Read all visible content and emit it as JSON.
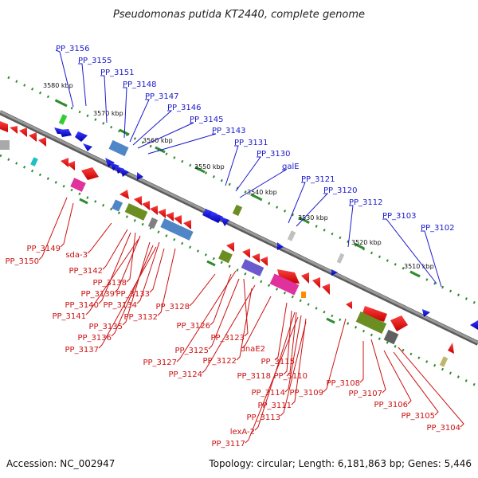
{
  "title": "Pseudomonas putida KT2440, complete genome",
  "footer": {
    "accession": "Accession: NC_002947",
    "topology": "Topology: circular; Length: 6,181,863 bp; Genes: 5,446"
  },
  "kbp_ticks": [
    "3580 kbp",
    "3570 kbp",
    "3560 kbp",
    "3550 kbp",
    "3540 kbp",
    "3530 kbp",
    "3520 kbp",
    "3510 kbp"
  ],
  "upper_labels": [
    "PP_3156",
    "PP_3155",
    "PP_3151",
    "PP_3148",
    "PP_3147",
    "PP_3146",
    "PP_3145",
    "PP_3143",
    "PP_3131",
    "PP_3130",
    "galE",
    "PP_3121",
    "PP_3120",
    "PP_3112",
    "PP_3103",
    "PP_3102"
  ],
  "lower_labels": [
    "PP_3149",
    "PP_3150",
    "sda-3",
    "PP_3142",
    "PP_3138",
    "PP_3139",
    "PP_3133",
    "PP_3140",
    "PP_3134",
    "PP_3141",
    "PP_3132",
    "PP_3135",
    "PP_3136",
    "PP_3137",
    "PP_3128",
    "PP_3126",
    "PP_3123",
    "PP_3125",
    "dnaE2",
    "PP_3122",
    "PP_3127",
    "PP_3124",
    "PP_3115",
    "PP_3118",
    "PP_3110",
    "PP_3114",
    "PP_3109",
    "PP_3111",
    "PP_3113",
    "lexA-2",
    "PP_3117",
    "PP_3108",
    "PP_3107",
    "PP_3106",
    "PP_3105",
    "PP_3104"
  ],
  "colors": {
    "backbone": "#808080",
    "forward_gene": "#1a1acc",
    "reverse_gene": "#dd1111",
    "tick_green": "#2e8b2e",
    "olive": "#6b8e23",
    "magenta": "#e0319d",
    "steelblue": "#4f86c6"
  }
}
